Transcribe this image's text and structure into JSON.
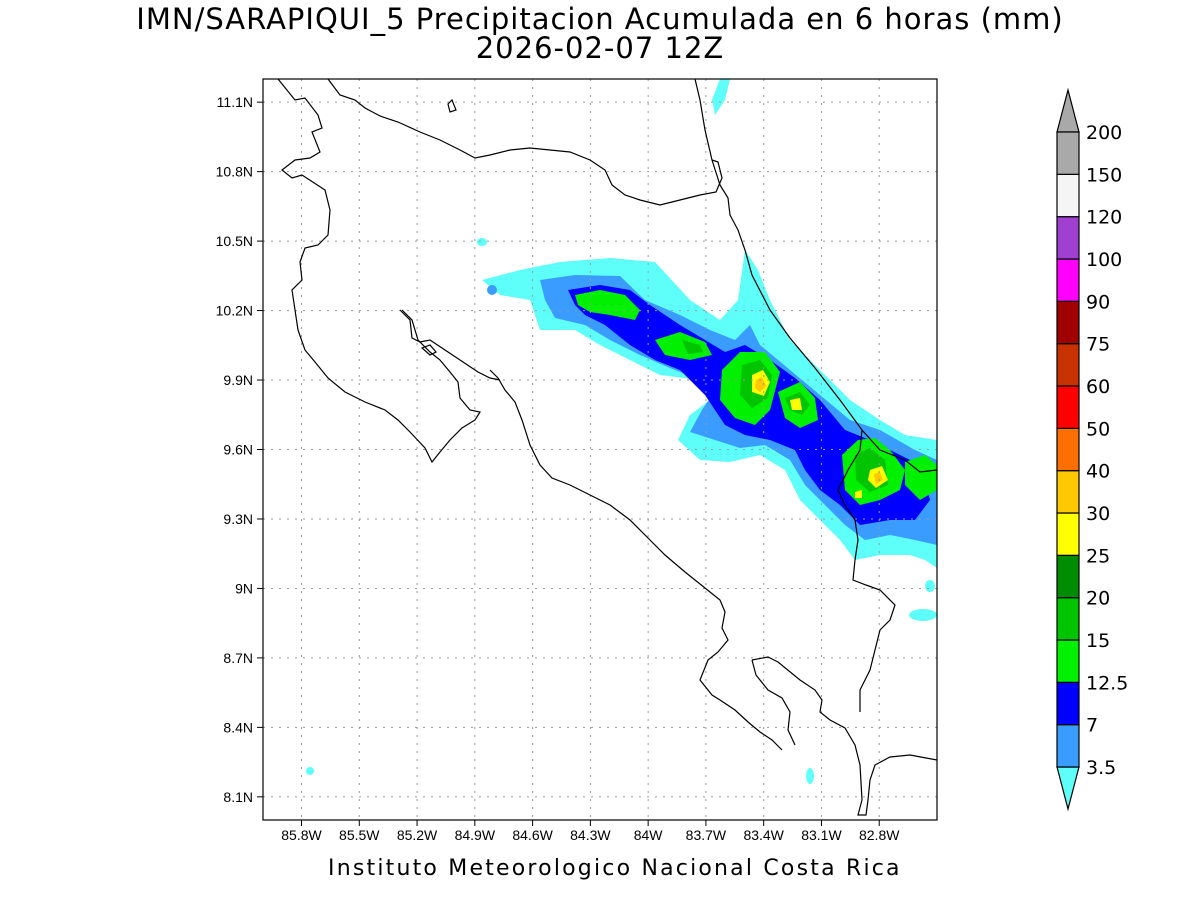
{
  "title": "IMN/SARAPIQUI_5 Precipitacion Acumulada en 6 horas (mm)",
  "subtitle": "2026-02-07 12Z",
  "footer": "Instituto Meteorologico Nacional Costa Rica",
  "map": {
    "lon_range": [
      -86.0,
      -82.5
    ],
    "lat_range": [
      8.0,
      11.2
    ],
    "lat_ticks": [
      {
        "value": 11.1,
        "label": "11.1N"
      },
      {
        "value": 10.8,
        "label": "10.8N"
      },
      {
        "value": 10.5,
        "label": "10.5N"
      },
      {
        "value": 10.2,
        "label": "10.2N"
      },
      {
        "value": 9.9,
        "label": "9.9N"
      },
      {
        "value": 9.6,
        "label": "9.6N"
      },
      {
        "value": 9.3,
        "label": "9.3N"
      },
      {
        "value": 9.0,
        "label": "9N"
      },
      {
        "value": 8.7,
        "label": "8.7N"
      },
      {
        "value": 8.4,
        "label": "8.4N"
      },
      {
        "value": 8.1,
        "label": "8.1N"
      }
    ],
    "lon_ticks": [
      {
        "value": -85.8,
        "label": "85.8W"
      },
      {
        "value": -85.5,
        "label": "85.5W"
      },
      {
        "value": -85.2,
        "label": "85.2W"
      },
      {
        "value": -84.9,
        "label": "84.9W"
      },
      {
        "value": -84.6,
        "label": "84.6W"
      },
      {
        "value": -84.3,
        "label": "84.3W"
      },
      {
        "value": -84.0,
        "label": "84W"
      },
      {
        "value": -83.7,
        "label": "83.7W"
      },
      {
        "value": -83.4,
        "label": "83.4W"
      },
      {
        "value": -83.1,
        "label": "83.1W"
      },
      {
        "value": -82.8,
        "label": "82.8W"
      }
    ]
  },
  "colorbar": {
    "levels": [
      {
        "label": "3.5",
        "color": "#5efff9"
      },
      {
        "label": "7",
        "color": "#3a9cff"
      },
      {
        "label": "12.5",
        "color": "#0000ff"
      },
      {
        "label": "15",
        "color": "#00f000"
      },
      {
        "label": "20",
        "color": "#00c400"
      },
      {
        "label": "25",
        "color": "#008c00"
      },
      {
        "label": "30",
        "color": "#ffff00"
      },
      {
        "label": "40",
        "color": "#ffc800"
      },
      {
        "label": "50",
        "color": "#ff6e00"
      },
      {
        "label": "60",
        "color": "#ff0000"
      },
      {
        "label": "75",
        "color": "#c83200"
      },
      {
        "label": "90",
        "color": "#a00000"
      },
      {
        "label": "100",
        "color": "#ff00ff"
      },
      {
        "label": "120",
        "color": "#a040d0"
      },
      {
        "label": "150",
        "color": "#f5f5f5"
      },
      {
        "label": "200",
        "color": "#a9a9a9"
      }
    ]
  },
  "precip_cells": [
    {
      "lon": -84.25,
      "lat": 10.32,
      "rlon": 0.28,
      "rlat": 0.1,
      "level": 1
    },
    {
      "lon": -83.95,
      "lat": 10.15,
      "rlon": 0.3,
      "rlat": 0.12,
      "level": 1
    },
    {
      "lon": -83.55,
      "lat": 9.95,
      "rlon": 0.3,
      "rlat": 0.18,
      "level": 1
    },
    {
      "lon": -83.3,
      "lat": 9.85,
      "rlon": 0.22,
      "rlat": 0.14,
      "level": 1
    },
    {
      "lon": -82.9,
      "lat": 9.5,
      "rlon": 0.32,
      "rlat": 0.2,
      "level": 1
    },
    {
      "lon": -84.25,
      "lat": 10.32,
      "rlon": 0.22,
      "rlat": 0.06,
      "level": 3
    },
    {
      "lon": -83.85,
      "lat": 10.15,
      "rlon": 0.16,
      "rlat": 0.06,
      "level": 3
    },
    {
      "lon": -83.42,
      "lat": 9.94,
      "rlon": 0.13,
      "rlat": 0.13,
      "level": 4
    },
    {
      "lon": -83.28,
      "lat": 9.87,
      "rlon": 0.1,
      "rlat": 0.08,
      "level": 3
    },
    {
      "lon": -82.85,
      "lat": 9.52,
      "rlon": 0.16,
      "rlat": 0.12,
      "level": 4
    },
    {
      "lon": -83.42,
      "lat": 9.94,
      "rlon": 0.05,
      "rlat": 0.06,
      "level": 7
    },
    {
      "lon": -82.78,
      "lat": 9.51,
      "rlon": 0.05,
      "rlat": 0.03,
      "level": 7
    }
  ]
}
